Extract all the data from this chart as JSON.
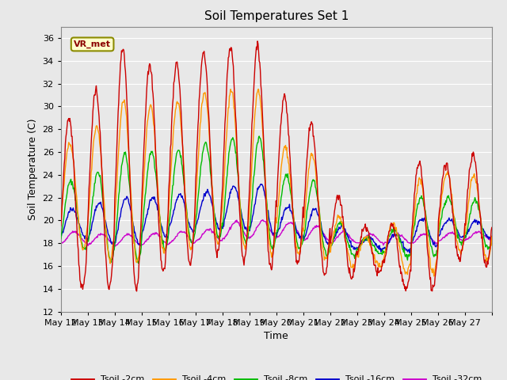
{
  "title": "Soil Temperatures Set 1",
  "xlabel": "Time",
  "ylabel": "Soil Temperature (C)",
  "ylim": [
    12,
    37
  ],
  "yticks": [
    12,
    14,
    16,
    18,
    20,
    22,
    24,
    26,
    28,
    30,
    32,
    34,
    36
  ],
  "annotation_text": "VR_met",
  "bg_color": "#e8e8e8",
  "legend_labels": [
    "Tsoil -2cm",
    "Tsoil -4cm",
    "Tsoil -8cm",
    "Tsoil -16cm",
    "Tsoil -32cm"
  ],
  "legend_colors": [
    "#cc0000",
    "#ff9900",
    "#00bb00",
    "#0000cc",
    "#cc00cc"
  ],
  "x_tick_labels": [
    "May 12",
    "May 13",
    "May 14",
    "May 15",
    "May 16",
    "May 17",
    "May 18",
    "May 19",
    "May 20",
    "May 21",
    "May 22",
    "May 23",
    "May 24",
    "May 25",
    "May 26",
    "May 27"
  ],
  "n_days": 16,
  "pts_per_day": 48
}
